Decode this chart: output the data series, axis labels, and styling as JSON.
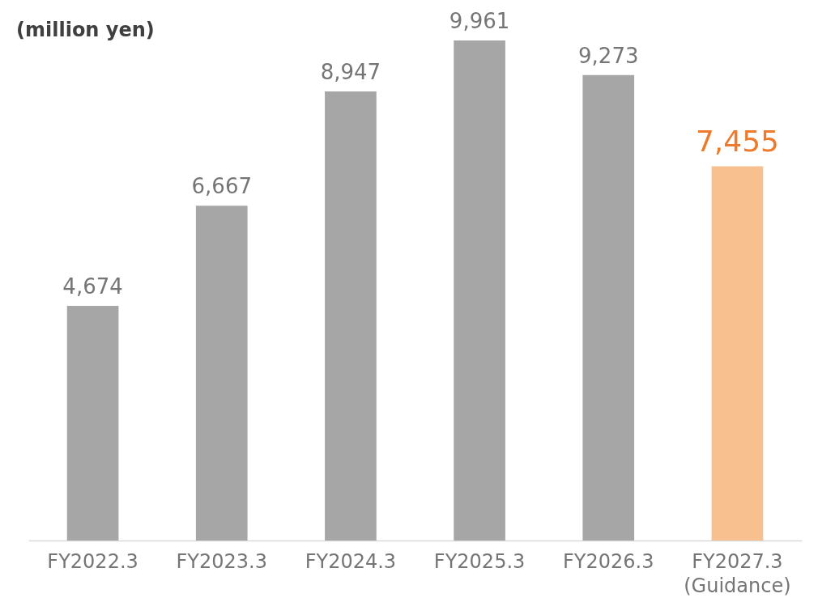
{
  "chart_data": {
    "type": "bar",
    "ylabel": "(million yen)",
    "categories": [
      "FY2022.3",
      "FY2023.3",
      "FY2024.3",
      "FY2025.3",
      "FY2026.3",
      "FY2027.3\n(Guidance)"
    ],
    "values": [
      4674,
      6667,
      8947,
      9961,
      9273,
      7455
    ],
    "colors": [
      "#a6a6a6",
      "#a6a6a6",
      "#a6a6a6",
      "#a6a6a6",
      "#a6a6a6",
      "#f8c08f"
    ],
    "value_labels": [
      "4,674",
      "6,667",
      "8,947",
      "9,961",
      "9,273",
      "7,455"
    ]
  }
}
